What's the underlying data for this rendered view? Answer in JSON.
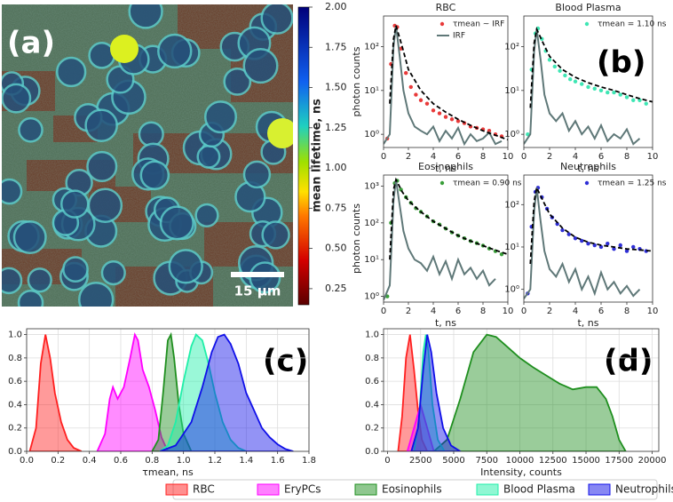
{
  "panel_labels": [
    "(a)",
    "(b)",
    "(c)",
    "(d)"
  ],
  "image": {
    "scale_bar": "15 µm"
  },
  "colorbar": {
    "label": "mean lifetime, ns",
    "lim": [
      0.15,
      2.0
    ],
    "ticks": [
      0.25,
      {
        "value": 0.5,
        "label": "0.50"
      },
      0.75,
      {
        "value": 1,
        "label": "1.00"
      },
      1.25,
      {
        "value": 1.5,
        "label": "1.50"
      },
      1.75,
      {
        "value": 2,
        "label": "2.00"
      }
    ]
  },
  "chart_data": [
    {
      "type": "line",
      "title": "RBC",
      "xlabel": "t, ns",
      "ylabel": "photon counts",
      "log_y": true,
      "xlim": [
        0,
        10
      ],
      "xticks": [
        0,
        2,
        4,
        6,
        8,
        10
      ],
      "ylim": [
        0.5,
        500
      ],
      "yticks": [
        {
          "value": 1,
          "label": "10⁰"
        },
        {
          "value": 10,
          "label": "10¹"
        },
        {
          "value": 100,
          "label": "10²"
        }
      ],
      "series": [
        {
          "name": "τmean ~ IRF",
          "type": "scatter",
          "color": "#e83a3a",
          "x": [
            0.3,
            0.6,
            0.9,
            1.1,
            1.4,
            1.8,
            2.2,
            2.6,
            3.0,
            3.5,
            4.0,
            4.5,
            5.0,
            5.5,
            6.0,
            6.5,
            7.0,
            7.5,
            8.0,
            8.5,
            9.0,
            9.5
          ],
          "values": [
            0.8,
            40,
            300,
            280,
            90,
            25,
            12,
            8,
            6,
            5,
            3.5,
            3,
            2.5,
            2.2,
            2,
            1.8,
            1.5,
            1.4,
            1.3,
            1.2,
            1.0,
            0.9
          ]
        },
        {
          "name": "IRF",
          "type": "line",
          "color": "#5f7878",
          "x": [
            0,
            0.5,
            0.8,
            1.0,
            1.3,
            1.6,
            2,
            2.5,
            3,
            3.5,
            4,
            4.5,
            5,
            5.5,
            6,
            6.5,
            7,
            7.5,
            8,
            8.5,
            9,
            9.5
          ],
          "values": [
            0.6,
            1,
            100,
            300,
            60,
            10,
            3,
            1.5,
            1.2,
            1,
            1.5,
            0.7,
            1.2,
            0.8,
            1.4,
            0.6,
            1,
            0.7,
            0.8,
            1.1,
            0.6,
            0.7
          ]
        },
        {
          "type": "line",
          "dash": true,
          "color": "#000000",
          "x": [
            0.5,
            0.8,
            1.0,
            1.5,
            2,
            3,
            4,
            5,
            6,
            7,
            8,
            9,
            10
          ],
          "values": [
            5,
            150,
            300,
            100,
            30,
            10,
            5,
            3.2,
            2.2,
            1.6,
            1.2,
            0.95,
            0.75
          ]
        }
      ]
    },
    {
      "type": "line",
      "title": "Blood Plasma",
      "xlabel": "t, ns",
      "log_y": true,
      "xlim": [
        0,
        10
      ],
      "xticks": [
        0,
        2,
        4,
        6,
        8,
        10
      ],
      "ylim": [
        0.5,
        500
      ],
      "yticks": [
        {
          "value": 1,
          "label": "10⁰"
        },
        {
          "value": 10,
          "label": "10¹"
        },
        {
          "value": 100,
          "label": "10²"
        }
      ],
      "series": [
        {
          "name": "τmean = 1.10 ns",
          "type": "scatter",
          "color": "#3fe6b4",
          "x": [
            0.3,
            0.6,
            0.9,
            1.1,
            1.4,
            1.7,
            2.0,
            2.4,
            2.8,
            3.2,
            3.6,
            4.0,
            4.5,
            5.0,
            5.5,
            6.0,
            6.5,
            7.0,
            7.5,
            8.0,
            8.5,
            9.0,
            9.5
          ],
          "values": [
            1,
            30,
            200,
            260,
            150,
            80,
            50,
            35,
            28,
            22,
            18,
            16,
            14,
            12,
            11,
            10,
            9,
            9,
            8,
            7,
            6,
            6,
            5
          ]
        },
        {
          "type": "line",
          "color": "#5f7878",
          "x": [
            0,
            0.5,
            0.8,
            1.0,
            1.3,
            1.6,
            2,
            2.5,
            3,
            3.5,
            4,
            4.5,
            5,
            5.5,
            6,
            6.5,
            7,
            7.5,
            8,
            8.5,
            9
          ],
          "values": [
            0.6,
            1,
            80,
            250,
            50,
            8,
            3,
            2,
            3,
            1.2,
            2,
            1,
            1.5,
            0.8,
            1.6,
            0.7,
            1,
            0.8,
            1.3,
            0.6,
            0.8
          ]
        },
        {
          "type": "line",
          "dash": true,
          "color": "#000000",
          "x": [
            0.5,
            0.8,
            1.0,
            1.5,
            2,
            3,
            4,
            5,
            6,
            7,
            8,
            9,
            10
          ],
          "values": [
            4,
            120,
            250,
            120,
            60,
            30,
            20,
            15,
            12,
            10,
            8,
            6.5,
            5.5
          ]
        }
      ]
    },
    {
      "type": "line",
      "title": "Eosinophils",
      "xlabel": "t, ns",
      "ylabel": "photon counts",
      "log_y": true,
      "xlim": [
        0,
        10
      ],
      "xticks": [
        0,
        2,
        4,
        6,
        8,
        10
      ],
      "ylim": [
        0.7,
        2000
      ],
      "yticks": [
        {
          "value": 1,
          "label": "10⁰"
        },
        {
          "value": 10,
          "label": "10¹"
        },
        {
          "value": 100,
          "label": "10²"
        },
        {
          "value": 1000,
          "label": "10³"
        }
      ],
      "series": [
        {
          "name": "τmean = 0.90 ns",
          "type": "scatter",
          "color": "#3a9e3a",
          "x": [
            0.3,
            0.6,
            0.9,
            1.1,
            1.4,
            1.8,
            2.2,
            2.6,
            3.0,
            3.5,
            4.0,
            4.5,
            5.0,
            5.5,
            6.0,
            6.5,
            7.0,
            7.5,
            8.0,
            8.5,
            9.0,
            9.5
          ],
          "values": [
            1,
            100,
            1200,
            1400,
            800,
            500,
            350,
            250,
            200,
            150,
            110,
            90,
            70,
            55,
            45,
            38,
            32,
            28,
            24,
            20,
            17,
            14
          ]
        },
        {
          "type": "line",
          "color": "#5f7878",
          "x": [
            0,
            0.5,
            0.8,
            1.0,
            1.3,
            1.6,
            2,
            2.5,
            3,
            3.5,
            4,
            4.5,
            5,
            5.5,
            6,
            6.5,
            7,
            7.5,
            8,
            8.5,
            9
          ],
          "values": [
            0.8,
            2,
            400,
            1500,
            300,
            60,
            20,
            10,
            8,
            5,
            12,
            4,
            9,
            3,
            10,
            4,
            6,
            3,
            5,
            2,
            3
          ]
        },
        {
          "type": "line",
          "dash": true,
          "color": "#000000",
          "x": [
            0.5,
            0.8,
            1.0,
            1.5,
            2,
            3,
            4,
            5,
            6,
            7,
            8,
            9,
            10
          ],
          "values": [
            10,
            800,
            1500,
            700,
            400,
            200,
            110,
            70,
            45,
            32,
            24,
            18,
            14
          ]
        }
      ]
    },
    {
      "type": "line",
      "title": "Neutrophils",
      "xlabel": "t, ns",
      "log_y": true,
      "xlim": [
        0,
        10
      ],
      "xticks": [
        0,
        2,
        4,
        6,
        8,
        10
      ],
      "ylim": [
        0.5,
        500
      ],
      "yticks": [
        {
          "value": 1,
          "label": "10⁰"
        },
        {
          "value": 10,
          "label": "10¹"
        },
        {
          "value": 100,
          "label": "10²"
        }
      ],
      "series": [
        {
          "name": "τmean = 1.25 ns",
          "type": "scatter",
          "color": "#2f2fd6",
          "x": [
            0.3,
            0.6,
            0.9,
            1.1,
            1.4,
            1.8,
            2.2,
            2.6,
            3.0,
            3.5,
            4.0,
            4.5,
            5.0,
            5.5,
            6.0,
            6.5,
            7.0,
            7.5,
            8.0,
            8.5,
            9.0,
            9.5
          ],
          "values": [
            0.8,
            30,
            200,
            250,
            150,
            80,
            50,
            35,
            25,
            20,
            16,
            14,
            12,
            11,
            10,
            12,
            9,
            11,
            8,
            10,
            9,
            8
          ]
        },
        {
          "type": "line",
          "color": "#5f7878",
          "x": [
            0,
            0.5,
            0.8,
            1.0,
            1.3,
            1.6,
            2,
            2.5,
            3,
            3.5,
            4,
            4.5,
            5,
            5.5,
            6,
            6.5,
            7,
            7.5,
            8,
            8.5,
            9
          ],
          "values": [
            0.6,
            1,
            70,
            250,
            40,
            8,
            3,
            2,
            4,
            1.5,
            3,
            1,
            2,
            0.8,
            2.5,
            1,
            1.5,
            0.8,
            1.2,
            0.7,
            1
          ]
        },
        {
          "type": "line",
          "dash": true,
          "color": "#000000",
          "x": [
            0.5,
            0.8,
            1.0,
            1.5,
            2,
            3,
            4,
            5,
            6,
            7,
            8,
            9,
            10
          ],
          "values": [
            4,
            120,
            250,
            120,
            60,
            28,
            17,
            13,
            11,
            10,
            9,
            8.5,
            8
          ]
        }
      ]
    },
    {
      "type": "area",
      "xlabel": "τmean, ns",
      "grid": true,
      "xlim": [
        0,
        1.8
      ],
      "xticks": [
        {
          "value": 0,
          "label": "0.0"
        },
        0.2,
        0.4,
        0.6,
        0.8,
        {
          "value": 1,
          "label": "1.0"
        },
        1.2,
        1.4,
        1.6,
        1.8
      ],
      "ylim": [
        0,
        1.05
      ],
      "yticks": [
        {
          "value": 0,
          "label": "0.0"
        },
        0.2,
        0.4,
        0.6,
        0.8,
        {
          "value": 1,
          "label": "1.0"
        }
      ],
      "series": [
        {
          "name": "RBC",
          "color": "#ff2020",
          "x": [
            0.02,
            0.06,
            0.09,
            0.12,
            0.15,
            0.18,
            0.22,
            0.26,
            0.3,
            0.35
          ],
          "values": [
            0,
            0.2,
            0.75,
            1.0,
            0.8,
            0.5,
            0.25,
            0.1,
            0.03,
            0
          ]
        },
        {
          "name": "EryPCs",
          "color": "#ff00ff",
          "x": [
            0.45,
            0.5,
            0.53,
            0.55,
            0.58,
            0.62,
            0.66,
            0.69,
            0.71,
            0.74,
            0.78,
            0.82,
            0.86,
            0.9
          ],
          "values": [
            0,
            0.15,
            0.45,
            0.55,
            0.45,
            0.55,
            0.8,
            1.0,
            0.95,
            0.7,
            0.55,
            0.35,
            0.12,
            0
          ]
        },
        {
          "name": "Eosinophils",
          "color": "#1f8f1f",
          "x": [
            0.8,
            0.84,
            0.87,
            0.9,
            0.92,
            0.94,
            0.97,
            1.0,
            1.05
          ],
          "values": [
            0,
            0.1,
            0.5,
            0.95,
            1.0,
            0.8,
            0.4,
            0.15,
            0
          ]
        },
        {
          "name": "Blood Plasma",
          "color": "#1fefa8",
          "x": [
            0.85,
            0.9,
            0.95,
            1.0,
            1.05,
            1.08,
            1.12,
            1.16,
            1.2,
            1.25,
            1.3,
            1.35,
            1.4
          ],
          "values": [
            0,
            0.05,
            0.25,
            0.6,
            0.9,
            1.0,
            0.95,
            0.75,
            0.5,
            0.25,
            0.1,
            0.03,
            0
          ]
        },
        {
          "name": "Neutrophils",
          "color": "#1010e8",
          "x": [
            0.85,
            0.95,
            1.05,
            1.12,
            1.18,
            1.22,
            1.26,
            1.3,
            1.35,
            1.4,
            1.45,
            1.5,
            1.55,
            1.6,
            1.65,
            1.7
          ],
          "values": [
            0,
            0.05,
            0.25,
            0.55,
            0.85,
            0.98,
            1.0,
            0.92,
            0.75,
            0.5,
            0.35,
            0.2,
            0.12,
            0.06,
            0.02,
            0
          ]
        }
      ]
    },
    {
      "type": "area",
      "xlabel": "Intensity, counts",
      "grid": true,
      "xlim": [
        -300,
        20500
      ],
      "xticks": [
        0,
        2500,
        5000,
        7500,
        10000,
        12500,
        15000,
        17500,
        20000
      ],
      "ylim": [
        0,
        1.05
      ],
      "yticks": [
        {
          "value": 0,
          "label": "0.0"
        },
        0.2,
        0.4,
        0.6,
        0.8,
        {
          "value": 1,
          "label": "1.0"
        }
      ],
      "series": [
        {
          "color": "#ff2020",
          "x": [
            800,
            1100,
            1400,
            1700,
            2000,
            2300,
            2600,
            3000
          ],
          "values": [
            0,
            0.3,
            0.8,
            1.0,
            0.7,
            0.35,
            0.1,
            0
          ]
        },
        {
          "color": "#ff00ff",
          "x": [
            1500,
            2000,
            2500,
            3000,
            3500
          ],
          "values": [
            0,
            0.2,
            0.4,
            0.2,
            0
          ]
        },
        {
          "color": "#1f8f1f",
          "x": [
            3500,
            4500,
            5500,
            6500,
            7500,
            8200,
            9000,
            10000,
            11000,
            12000,
            13000,
            14000,
            15000,
            15800,
            16500,
            17000,
            17500,
            18000
          ],
          "values": [
            0,
            0.1,
            0.45,
            0.85,
            1.0,
            0.98,
            0.9,
            0.8,
            0.72,
            0.65,
            0.58,
            0.53,
            0.55,
            0.55,
            0.45,
            0.3,
            0.1,
            0
          ]
        },
        {
          "color": "#1fefa8",
          "x": [
            2000,
            2400,
            2700,
            2900,
            3100,
            3400,
            3800,
            4300
          ],
          "values": [
            0,
            0.3,
            0.85,
            1.0,
            0.85,
            0.4,
            0.1,
            0
          ]
        },
        {
          "color": "#1010e8",
          "x": [
            1800,
            2300,
            2700,
            3000,
            3300,
            3700,
            4200,
            4800,
            5500
          ],
          "values": [
            0,
            0.2,
            0.7,
            1.0,
            0.85,
            0.5,
            0.2,
            0.05,
            0
          ]
        }
      ]
    }
  ]
}
